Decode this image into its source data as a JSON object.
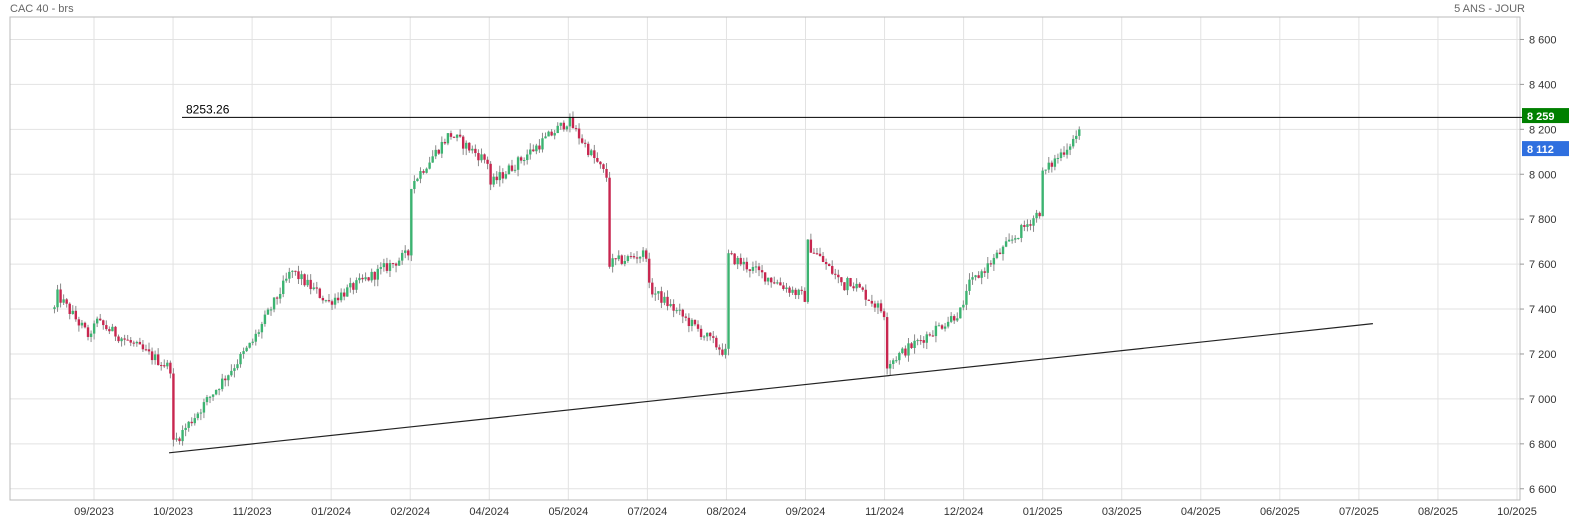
{
  "header": {
    "instrument": "CAC 40 - brs",
    "period": "5 ANS - JOUR"
  },
  "chart_data": {
    "type": "candlestick",
    "x_tick_labels": [
      "09/2023",
      "10/2023",
      "11/2023",
      "01/2024",
      "02/2024",
      "04/2024",
      "05/2024",
      "07/2024",
      "08/2024",
      "09/2024",
      "11/2024",
      "12/2024",
      "01/2025",
      "03/2025",
      "04/2025",
      "06/2025",
      "07/2025",
      "08/2025",
      "10/2025"
    ],
    "y_ticks": [
      6600,
      6800,
      7000,
      7200,
      7400,
      7600,
      7800,
      8000,
      8200,
      8400,
      8600
    ],
    "y_tick_labels": [
      "6 600",
      "6 800",
      "7 000",
      "7 200",
      "7 400",
      "7 600",
      "7 800",
      "8 000",
      "8 200",
      "8 400",
      "8 600"
    ],
    "ylim": [
      6550,
      8700
    ],
    "grid": true,
    "badges": [
      {
        "label": "8 259",
        "value": 8259,
        "color": "#008000"
      },
      {
        "label": "8 112",
        "value": 8112,
        "color": "#2f6fdf"
      }
    ],
    "horizontal_line": {
      "label": "8253.26",
      "value": 8253.26
    },
    "trendline": {
      "start": {
        "date": "10/2023",
        "value": 6760
      },
      "end": {
        "date": "07/2025",
        "value": 7335
      }
    },
    "up_color": "#3cb371",
    "down_color": "#c8264f",
    "price_path": [
      {
        "date": "08/2023",
        "value": 7400
      },
      {
        "date": "08/2023",
        "value": 7480
      },
      {
        "date": "09/2023",
        "value": 7250
      },
      {
        "date": "09/2023",
        "value": 7350
      },
      {
        "date": "10/2023",
        "value": 7130
      },
      {
        "date": "10/2023",
        "value": 6800
      },
      {
        "date": "11/2023",
        "value": 7250
      },
      {
        "date": "12/2023",
        "value": 7570
      },
      {
        "date": "01/2024",
        "value": 7420
      },
      {
        "date": "01/2024",
        "value": 7440
      },
      {
        "date": "02/2024",
        "value": 7650
      },
      {
        "date": "02/2024",
        "value": 7950
      },
      {
        "date": "03/2024",
        "value": 8180
      },
      {
        "date": "04/2024",
        "value": 8050
      },
      {
        "date": "04/2024",
        "value": 7950
      },
      {
        "date": "05/2024",
        "value": 8240
      },
      {
        "date": "06/2024",
        "value": 7980
      },
      {
        "date": "06/2024",
        "value": 7600
      },
      {
        "date": "07/2024",
        "value": 7650
      },
      {
        "date": "07/2024",
        "value": 7500
      },
      {
        "date": "08/2024",
        "value": 7200
      },
      {
        "date": "08/2024",
        "value": 7530
      },
      {
        "date": "08/2024",
        "value": 7640
      },
      {
        "date": "09/2024",
        "value": 7450
      },
      {
        "date": "09/2024",
        "value": 7700
      },
      {
        "date": "10/2024",
        "value": 7500
      },
      {
        "date": "10/2024",
        "value": 7550
      },
      {
        "date": "11/2024",
        "value": 7380
      },
      {
        "date": "11/2024",
        "value": 7150
      },
      {
        "date": "12/2024",
        "value": 7400
      },
      {
        "date": "12/2024",
        "value": 7320
      },
      {
        "date": "12/2024",
        "value": 7480
      },
      {
        "date": "01/2025",
        "value": 7850
      },
      {
        "date": "01/2025",
        "value": 8000
      },
      {
        "date": "02/2025",
        "value": 8200
      },
      {
        "date": "02/2025",
        "value": 8112
      }
    ]
  }
}
